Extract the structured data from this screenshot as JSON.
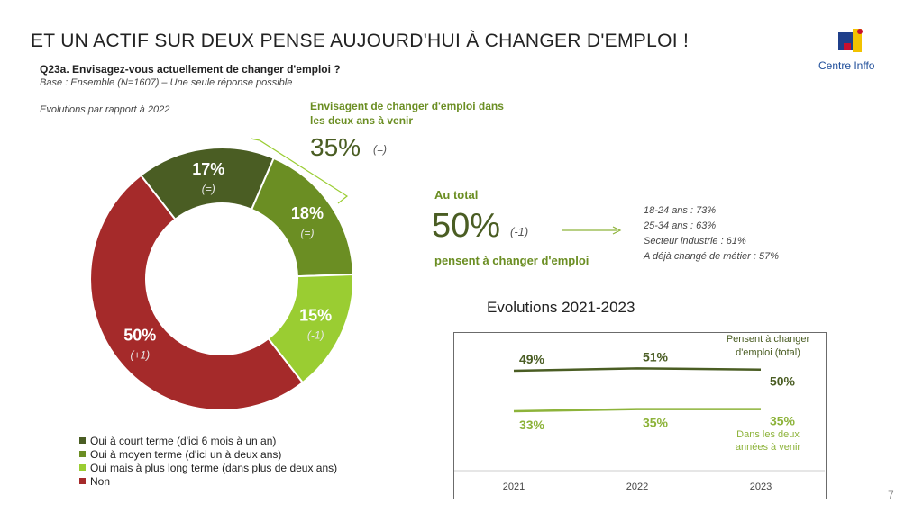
{
  "header": {
    "title": "ET UN ACTIF SUR DEUX PENSE AUJOURD'HUI À CHANGER D'EMPLOI !",
    "question": "Q23a. Envisagez-vous actuellement de changer d'emploi ?",
    "base": "Base : Ensemble (N=1607) – Une seule réponse possible",
    "evolutions_note": "Evolutions par rapport à 2022",
    "logo_text": "Centre Inffo",
    "page_number": "7"
  },
  "callouts": {
    "envisage_label": "Envisagent de changer d'emploi dans les deux ans à venir",
    "envisage_value": "35%",
    "envisage_change": "(=)",
    "total_label": "Au total",
    "total_value": "50%",
    "total_change": "(-1)",
    "total_desc": "pensent à changer d'emploi",
    "details": [
      "18-24 ans : 73%",
      "25-34 ans : 63%",
      "Secteur industrie : 61%",
      "A déjà changé de métier : 57%"
    ]
  },
  "chart_data": [
    {
      "type": "pie",
      "donut": true,
      "slices": [
        {
          "name": "Oui à court terme (d'ici 6 mois à un an)",
          "value": 17,
          "label": "17%",
          "change": "(=)",
          "color": "#4a5d23"
        },
        {
          "name": "Oui à moyen terme (d'ici un à deux ans)",
          "value": 18,
          "label": "18%",
          "change": "(=)",
          "color": "#6b8e23"
        },
        {
          "name": "Oui mais à plus long terme (dans plus de deux ans)",
          "value": 15,
          "label": "15%",
          "change": "(-1)",
          "color": "#9acd32"
        },
        {
          "name": "Non",
          "value": 50,
          "label": "50%",
          "change": "(+1)",
          "color": "#a52a2a"
        }
      ],
      "legend_position": "bottom-left"
    },
    {
      "type": "line",
      "title": "Evolutions 2021-2023",
      "categories": [
        "2021",
        "2022",
        "2023"
      ],
      "series": [
        {
          "name": "Pensent à changer d'emploi (total)",
          "values": [
            49,
            51,
            50
          ],
          "labels": [
            "49%",
            "51%",
            "50%"
          ],
          "color": "#4a5d23"
        },
        {
          "name": "Dans les deux années à venir",
          "values": [
            33,
            35,
            35
          ],
          "labels": [
            "33%",
            "35%",
            "35%"
          ],
          "color": "#8db33a"
        }
      ],
      "series_label_lines": [
        [
          "Pensent à changer",
          "d'emploi (total)"
        ],
        [
          "Dans les deux",
          "années à venir"
        ]
      ],
      "grid": false
    }
  ]
}
